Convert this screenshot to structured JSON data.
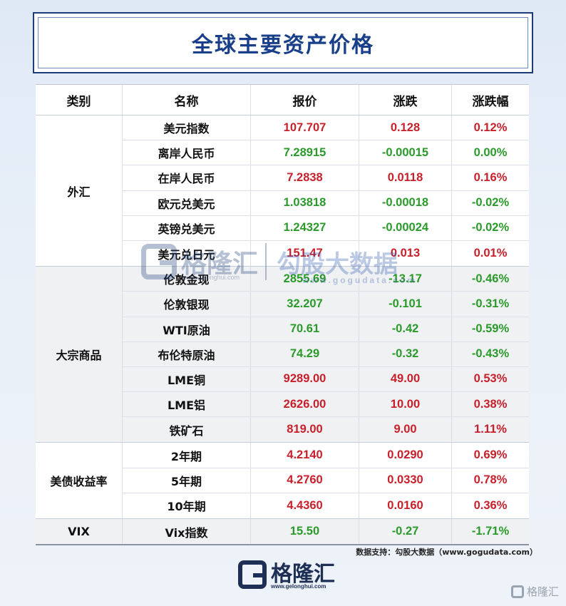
{
  "title": "全球主要资产价格",
  "columns": [
    "类别",
    "名称",
    "报价",
    "涨跌",
    "涨跌幅"
  ],
  "groups": [
    {
      "category": "外汇",
      "shade": "white",
      "rows": [
        {
          "name": "美元指数",
          "price": "107.707",
          "change": "0.128",
          "pct": "0.12%",
          "dir": "up"
        },
        {
          "name": "离岸人民币",
          "price": "7.28915",
          "change": "-0.00015",
          "pct": "0.00%",
          "dir": "down"
        },
        {
          "name": "在岸人民币",
          "price": "7.2838",
          "change": "0.0118",
          "pct": "0.16%",
          "dir": "up"
        },
        {
          "name": "欧元兑美元",
          "price": "1.03818",
          "change": "-0.00018",
          "pct": "-0.02%",
          "dir": "down"
        },
        {
          "name": "英镑兑美元",
          "price": "1.24327",
          "change": "-0.00024",
          "pct": "-0.02%",
          "dir": "down"
        },
        {
          "name": "美元兑日元",
          "price": "151.47",
          "change": "0.013",
          "pct": "0.01%",
          "dir": "up"
        }
      ]
    },
    {
      "category": "大宗商品",
      "shade": "gray",
      "rows": [
        {
          "name": "伦敦金现",
          "price": "2855.69",
          "change": "-13.17",
          "pct": "-0.46%",
          "dir": "down"
        },
        {
          "name": "伦敦银现",
          "price": "32.207",
          "change": "-0.101",
          "pct": "-0.31%",
          "dir": "down"
        },
        {
          "name": "WTI原油",
          "price": "70.61",
          "change": "-0.42",
          "pct": "-0.59%",
          "dir": "down"
        },
        {
          "name": "布伦特原油",
          "price": "74.29",
          "change": "-0.32",
          "pct": "-0.43%",
          "dir": "down"
        },
        {
          "name": "LME铜",
          "price": "9289.00",
          "change": "49.00",
          "pct": "0.53%",
          "dir": "up"
        },
        {
          "name": "LME铝",
          "price": "2626.00",
          "change": "10.00",
          "pct": "0.38%",
          "dir": "up"
        },
        {
          "name": "铁矿石",
          "price": "819.00",
          "change": "9.00",
          "pct": "1.11%",
          "dir": "up"
        }
      ]
    },
    {
      "category": "美债收益率",
      "shade": "white",
      "rows": [
        {
          "name": "2年期",
          "price": "4.2140",
          "change": "0.0290",
          "pct": "0.69%",
          "dir": "up"
        },
        {
          "name": "5年期",
          "price": "4.2760",
          "change": "0.0330",
          "pct": "0.78%",
          "dir": "up"
        },
        {
          "name": "10年期",
          "price": "4.4360",
          "change": "0.0160",
          "pct": "0.36%",
          "dir": "up"
        }
      ]
    },
    {
      "category": "VIX",
      "shade": "gray",
      "rows": [
        {
          "name": "Vix指数",
          "price": "15.50",
          "change": "-0.27",
          "pct": "-1.71%",
          "dir": "down"
        }
      ]
    }
  ],
  "source": "数据支持：勾股大数据（www.gogudata.com）",
  "watermark": {
    "brand": "格隆汇",
    "brand_url": "www.gelonghui.com",
    "partner": "勾股大数据",
    "partner_url": "www.gogudata.com"
  },
  "logo": {
    "text": "格隆汇",
    "url": "www.gelonghui.com"
  },
  "corner_mark": "格隆汇",
  "colors": {
    "up": "#c8202b",
    "down": "#2a9a2a",
    "title": "#1a3f8a"
  }
}
